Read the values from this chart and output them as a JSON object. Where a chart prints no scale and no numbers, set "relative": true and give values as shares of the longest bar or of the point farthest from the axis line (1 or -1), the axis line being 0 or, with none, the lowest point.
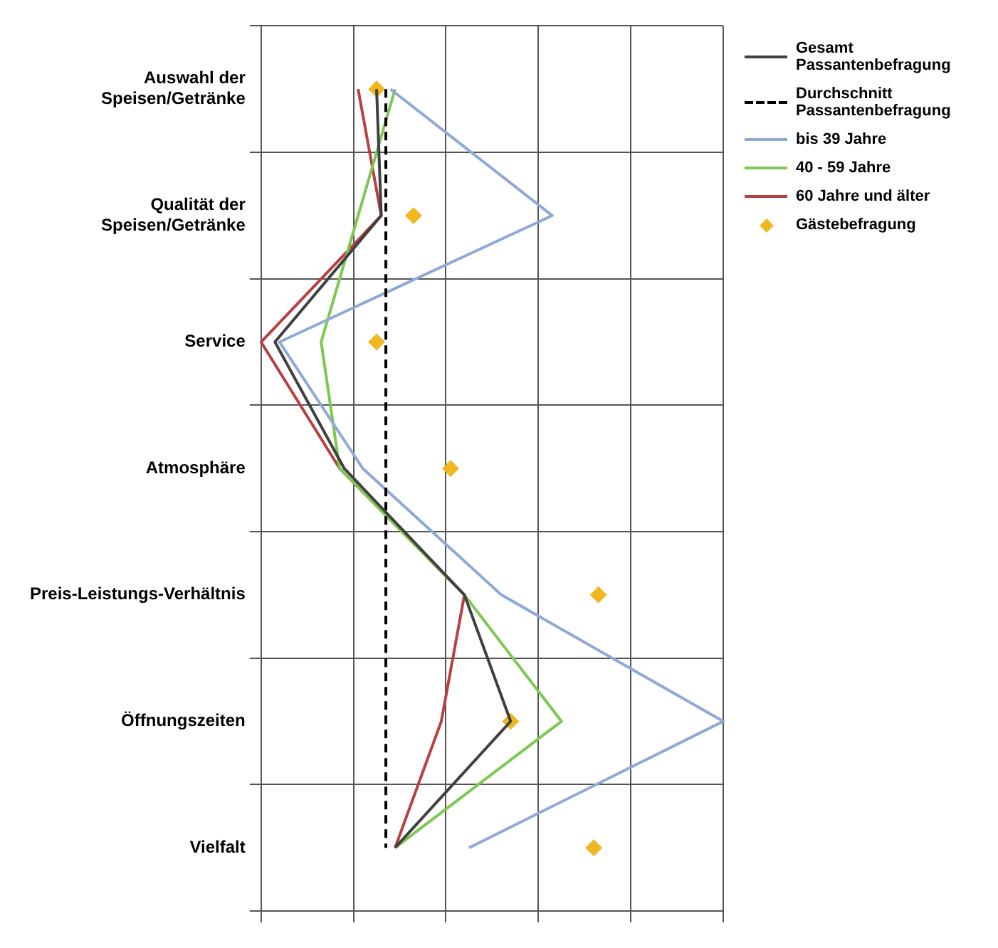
{
  "chart_data": {
    "type": "line",
    "orientation": "horizontal",
    "relative": true,
    "grid": true,
    "legend": "right",
    "marker": "none",
    "categories": [
      "Auswahl der Speisen/Getränke",
      "Qualität der Speisen/Getränke",
      "Service",
      "Atmosphäre",
      "Preis-Leistungs-Verhältnis",
      "Öffnungszeiten",
      "Vielfalt"
    ],
    "series": [
      {
        "name": "Gesamt Passantenbefragung",
        "color": "#404040",
        "values": [
          0.25,
          0.26,
          0.03,
          0.18,
          0.44,
          0.54,
          0.29
        ]
      },
      {
        "name": "Durchschnitt Passantenbefragung",
        "color": "#000000",
        "line_style": "dashed",
        "values": [
          0.27,
          0.27,
          0.27,
          0.27,
          0.27,
          0.27,
          0.27
        ]
      },
      {
        "name": "bis 39 Jahre",
        "color": "#8fa8d8",
        "values": [
          0.28,
          0.63,
          0.04,
          0.22,
          0.52,
          1,
          0.45
        ]
      },
      {
        "name": "40 - 59 Jahre",
        "color": "#7dc850",
        "values": [
          0.29,
          0.21,
          0.13,
          0.17,
          0.44,
          0.65,
          0.29
        ]
      },
      {
        "name": "60 Jahre und älter",
        "color": "#b84040",
        "values": [
          0.21,
          0.26,
          0,
          0.17,
          0.44,
          0.39,
          0.29
        ]
      },
      {
        "name": "Gästebefragung",
        "type": "scatter",
        "marker": "diamond",
        "color": "#f0b820",
        "values": [
          0.25,
          0.33,
          0.25,
          0.41,
          0.73,
          0.54,
          0.72
        ]
      }
    ]
  }
}
